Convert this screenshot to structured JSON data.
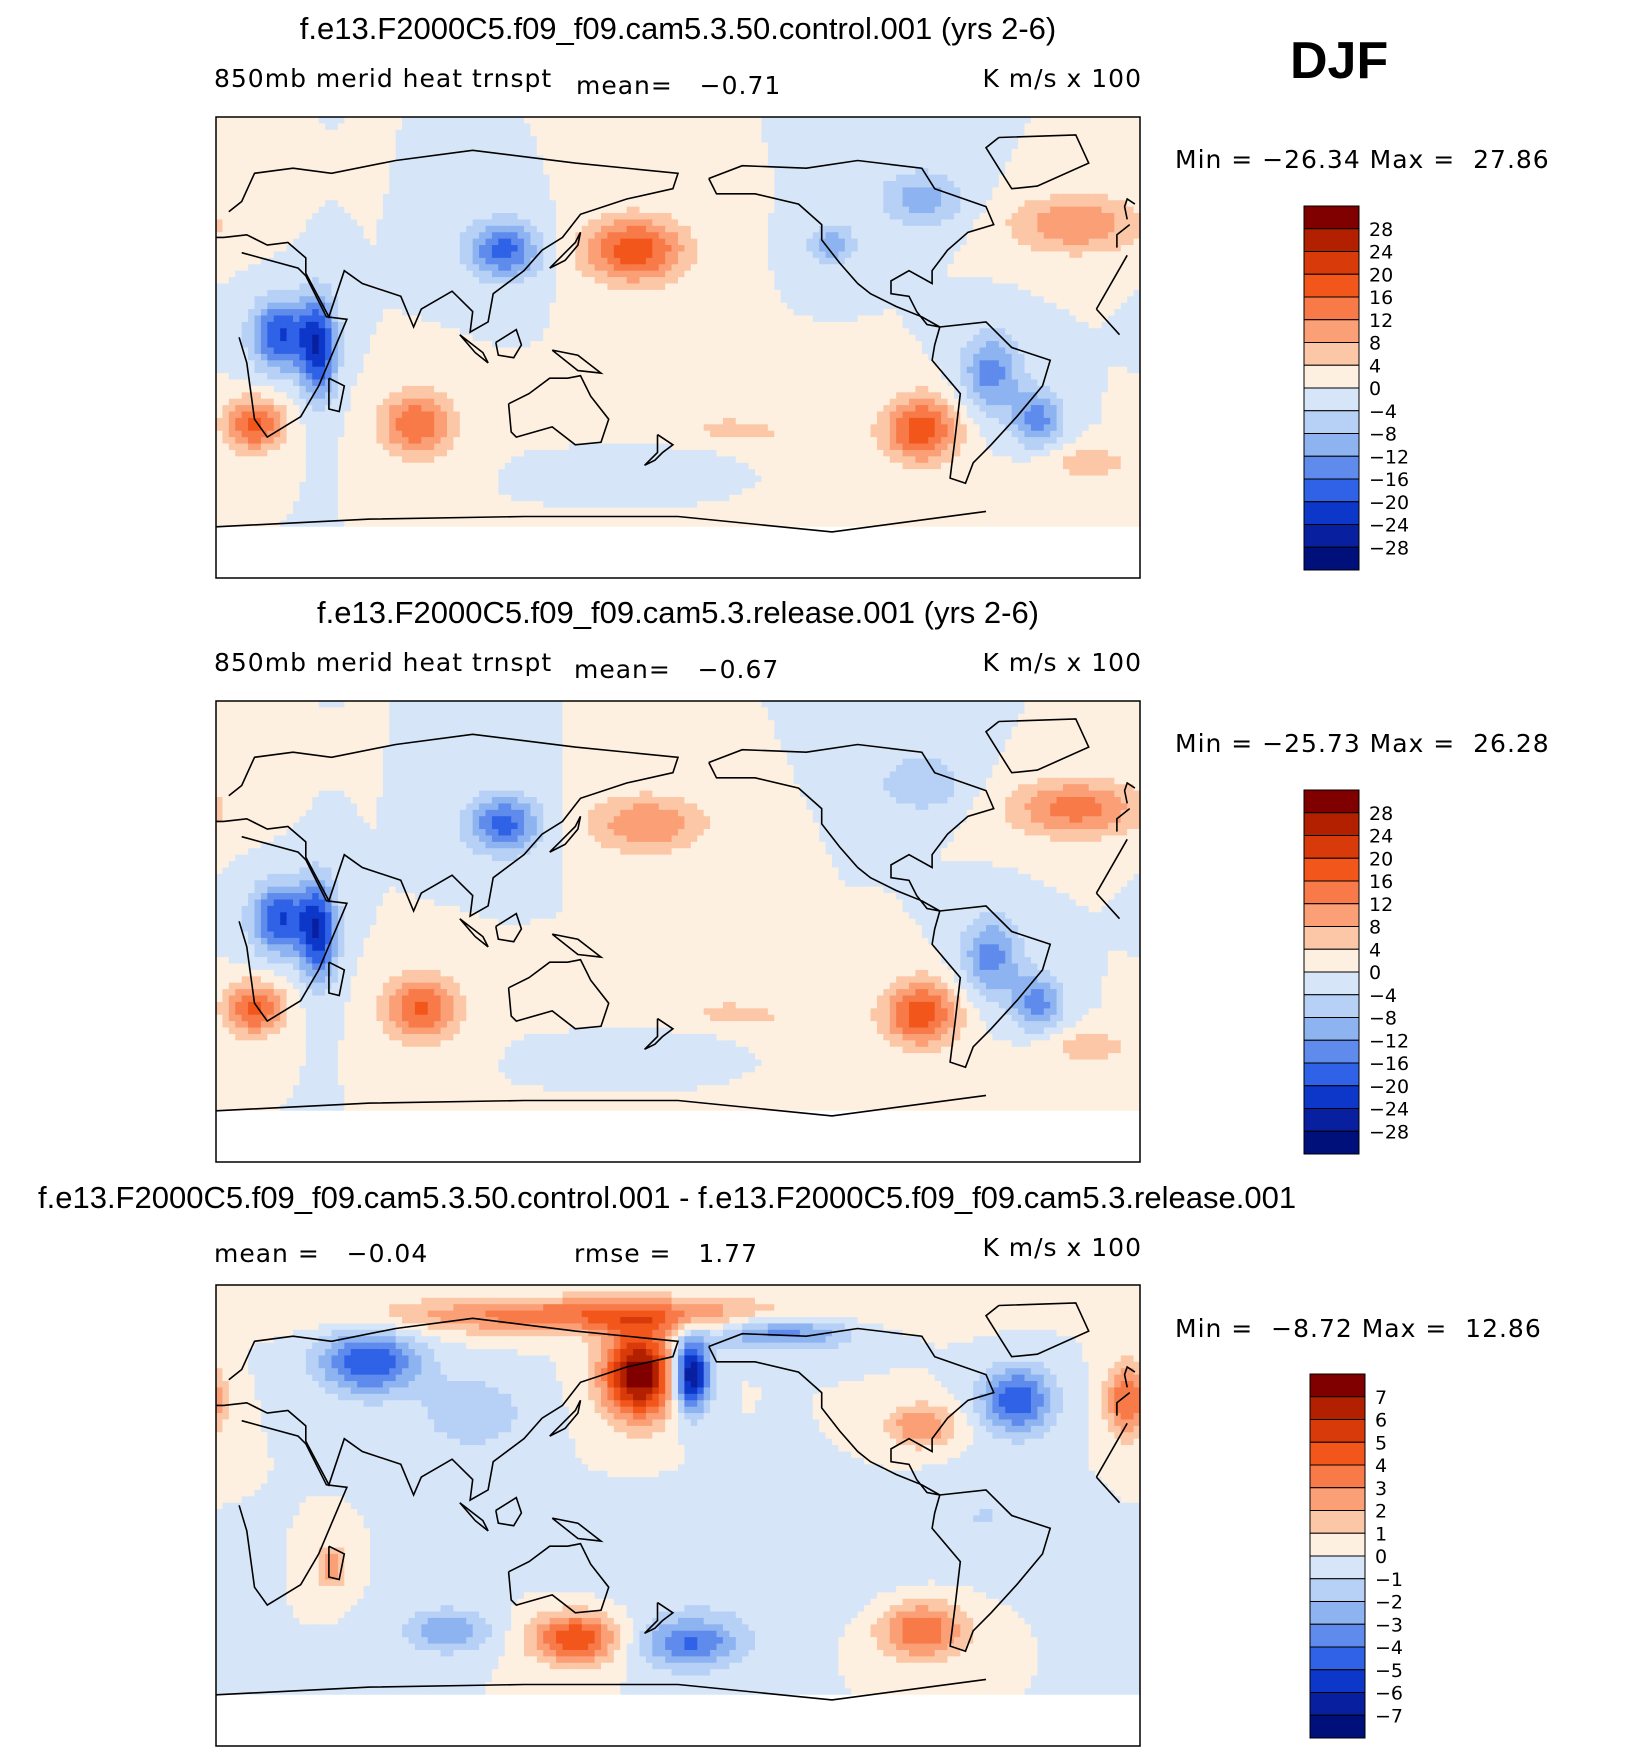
{
  "season": "DJF",
  "panels": [
    {
      "title": "f.e13.F2000C5.f09_f09.cam5.3.50.control.001 (yrs 2-6)",
      "variable": "850mb merid heat trnspt",
      "stat_text": "mean=   −0.71",
      "units": "K m/s x 100",
      "minmax": "Min = −26.34 Max =  27.86",
      "colorbar_labels": [
        "28",
        "24",
        "20",
        "16",
        "12",
        "8",
        "4",
        "0",
        "−4",
        "−8",
        "−12",
        "−16",
        "−20",
        "−24",
        "−28"
      ]
    },
    {
      "title": "f.e13.F2000C5.f09_f09.cam5.3.release.001 (yrs 2-6)",
      "variable": "850mb merid heat trnspt",
      "stat_text": "mean=   −0.67",
      "units": "K m/s x 100",
      "minmax": "Min = −25.73 Max =  26.28",
      "colorbar_labels": [
        "28",
        "24",
        "20",
        "16",
        "12",
        "8",
        "4",
        "0",
        "−4",
        "−8",
        "−12",
        "−16",
        "−20",
        "−24",
        "−28"
      ]
    },
    {
      "title": "f.e13.F2000C5.f09_f09.cam5.3.50.control.001 - f.e13.F2000C5.f09_f09.cam5.3.release.001",
      "mean_text": "mean =   −0.04",
      "rmse_text": "rmse =   1.77",
      "units": "K m/s x 100",
      "minmax": "Min =  −8.72 Max =  12.86",
      "colorbar_labels": [
        "7",
        "6",
        "5",
        "4",
        "3",
        "2",
        "1",
        "0",
        "−1",
        "−2",
        "−3",
        "−4",
        "−5",
        "−6",
        "−7"
      ]
    }
  ],
  "colors": {
    "scale": [
      "#800000",
      "#b22000",
      "#d93a0a",
      "#f2561b",
      "#f77a48",
      "#fa9f76",
      "#fcc7a6",
      "#fef0e0",
      "#d6e6f8",
      "#b6d0f6",
      "#8eb3f1",
      "#5e8bec",
      "#2f62e6",
      "#0d37c9",
      "#081fa0",
      "#00107a"
    ]
  },
  "chart_data": [
    {
      "type": "heatmap",
      "title": "f.e13.F2000C5.f09_f09.cam5.3.50.control.001 (yrs 2-6)",
      "variable": "850mb merid heat trnspt",
      "units": "K m/s x 100",
      "mean": -0.71,
      "min": -26.34,
      "max": 27.86,
      "levels": [
        -28,
        -24,
        -20,
        -16,
        -12,
        -8,
        -4,
        0,
        4,
        8,
        12,
        16,
        20,
        24,
        28
      ],
      "blobs": [
        {
          "lon": 163,
          "lat": 38,
          "value": 19,
          "rlon": 14,
          "rlat": 9
        },
        {
          "lon": 112,
          "lat": 38,
          "value": -18,
          "rlon": 10,
          "rlat": 8
        },
        {
          "lon": 25,
          "lat": 5,
          "value": -20,
          "rlon": 8,
          "rlat": 10
        },
        {
          "lon": 40,
          "lat": 0,
          "value": -22,
          "rlon": 5,
          "rlat": 14
        },
        {
          "lon": 15,
          "lat": -30,
          "value": 18,
          "rlon": 8,
          "rlat": 7
        },
        {
          "lon": 78,
          "lat": -30,
          "value": 16,
          "rlon": 10,
          "rlat": 9
        },
        {
          "lon": 275,
          "lat": -32,
          "value": 19,
          "rlon": 10,
          "rlat": 9
        },
        {
          "lon": 320,
          "lat": -28,
          "value": -14,
          "rlon": 7,
          "rlat": 8
        },
        {
          "lon": 302,
          "lat": -10,
          "value": -14,
          "rlon": 8,
          "rlat": 11
        },
        {
          "lon": 335,
          "lat": 48,
          "value": 12,
          "rlon": 18,
          "rlat": 8
        },
        {
          "lon": 275,
          "lat": 58,
          "value": -10,
          "rlon": 12,
          "rlat": 8
        },
        {
          "lon": 240,
          "lat": 40,
          "value": -10,
          "rlon": 7,
          "rlat": 6
        },
        {
          "lon": 200,
          "lat": -35,
          "value": 5,
          "rlon": 30,
          "rlat": 10
        },
        {
          "lon": 180,
          "lat": -45,
          "value": -6,
          "rlon": 22,
          "rlat": 6
        },
        {
          "lon": 340,
          "lat": -45,
          "value": 6,
          "rlon": 15,
          "rlat": 5
        }
      ]
    },
    {
      "type": "heatmap",
      "title": "f.e13.F2000C5.f09_f09.cam5.3.release.001 (yrs 2-6)",
      "variable": "850mb merid heat trnspt",
      "units": "K m/s x 100",
      "mean": -0.67,
      "min": -25.73,
      "max": 26.28,
      "levels": [
        -28,
        -24,
        -20,
        -16,
        -12,
        -8,
        -4,
        0,
        4,
        8,
        12,
        16,
        20,
        24,
        28
      ],
      "blobs": [
        {
          "lon": 168,
          "lat": 42,
          "value": 12,
          "rlon": 16,
          "rlat": 8
        },
        {
          "lon": 112,
          "lat": 42,
          "value": -18,
          "rlon": 10,
          "rlat": 8
        },
        {
          "lon": 25,
          "lat": 5,
          "value": -20,
          "rlon": 8,
          "rlat": 10
        },
        {
          "lon": 40,
          "lat": 0,
          "value": -22,
          "rlon": 5,
          "rlat": 14
        },
        {
          "lon": 15,
          "lat": -30,
          "value": 18,
          "rlon": 8,
          "rlat": 7
        },
        {
          "lon": 80,
          "lat": -30,
          "value": 17,
          "rlon": 10,
          "rlat": 9
        },
        {
          "lon": 275,
          "lat": -32,
          "value": 19,
          "rlon": 10,
          "rlat": 9
        },
        {
          "lon": 320,
          "lat": -28,
          "value": -14,
          "rlon": 7,
          "rlat": 8
        },
        {
          "lon": 302,
          "lat": -10,
          "value": -14,
          "rlon": 8,
          "rlat": 11
        },
        {
          "lon": 335,
          "lat": 48,
          "value": 14,
          "rlon": 18,
          "rlat": 8
        },
        {
          "lon": 275,
          "lat": 58,
          "value": -8,
          "rlon": 12,
          "rlat": 8
        },
        {
          "lon": 200,
          "lat": -35,
          "value": 5,
          "rlon": 30,
          "rlat": 10
        },
        {
          "lon": 180,
          "lat": -45,
          "value": -6,
          "rlon": 22,
          "rlat": 6
        },
        {
          "lon": 340,
          "lat": -45,
          "value": 6,
          "rlon": 15,
          "rlat": 5
        }
      ]
    },
    {
      "type": "heatmap",
      "title": "f.e13.F2000C5.f09_f09.cam5.3.50.control.001 - f.e13.F2000C5.f09_f09.cam5.3.release.001",
      "units": "K m/s x 100",
      "mean": -0.04,
      "rmse": 1.77,
      "min": -8.72,
      "max": 12.86,
      "levels": [
        -7,
        -6,
        -5,
        -4,
        -3,
        -2,
        -1,
        0,
        1,
        2,
        3,
        4,
        5,
        6,
        7
      ],
      "blobs": [
        {
          "lon": 165,
          "lat": 55,
          "value": 8,
          "rlon": 10,
          "rlat": 12
        },
        {
          "lon": 185,
          "lat": 55,
          "value": -8,
          "rlon": 5,
          "rlat": 10
        },
        {
          "lon": 150,
          "lat": 78,
          "value": 4,
          "rlon": 60,
          "rlat": 5
        },
        {
          "lon": 220,
          "lat": 72,
          "value": -4,
          "rlon": 20,
          "rlat": 5
        },
        {
          "lon": 60,
          "lat": 60,
          "value": -5,
          "rlon": 14,
          "rlat": 9
        },
        {
          "lon": 312,
          "lat": 45,
          "value": -5,
          "rlon": 10,
          "rlat": 9
        },
        {
          "lon": 355,
          "lat": 45,
          "value": 4,
          "rlon": 6,
          "rlat": 10
        },
        {
          "lon": 275,
          "lat": 35,
          "value": 3,
          "rlon": 10,
          "rlat": 6
        },
        {
          "lon": 140,
          "lat": -48,
          "value": 5,
          "rlon": 12,
          "rlat": 7
        },
        {
          "lon": 185,
          "lat": -50,
          "value": -4,
          "rlon": 14,
          "rlat": 7
        },
        {
          "lon": 275,
          "lat": -45,
          "value": 4,
          "rlon": 12,
          "rlat": 8
        },
        {
          "lon": 45,
          "lat": -20,
          "value": 3,
          "rlon": 4,
          "rlat": 6
        },
        {
          "lon": 90,
          "lat": -45,
          "value": -3,
          "rlon": 12,
          "rlat": 6
        },
        {
          "lon": 100,
          "lat": 40,
          "value": -2,
          "rlon": 14,
          "rlat": 10
        },
        {
          "lon": 210,
          "lat": -20,
          "value": -1,
          "rlon": 40,
          "rlat": 15
        },
        {
          "lon": 300,
          "lat": 0,
          "value": -1,
          "rlon": 15,
          "rlat": 12
        }
      ]
    }
  ]
}
